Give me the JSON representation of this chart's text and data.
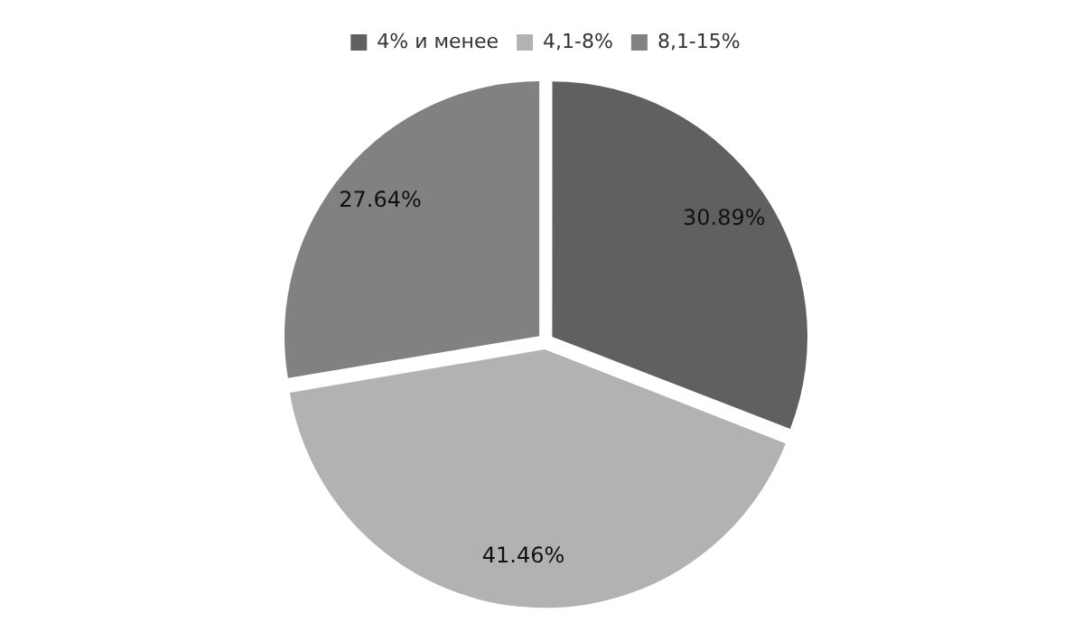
{
  "chart_data": {
    "type": "pie",
    "categories": [
      "4% и менее",
      "4,1-8%",
      "8,1-15%"
    ],
    "values": [
      30.89,
      41.46,
      27.64
    ],
    "colors": [
      "#606060",
      "#b2b2b2",
      "#818181"
    ],
    "value_labels": [
      "30.89%",
      "41.46%",
      "27.64%"
    ],
    "legend": "top"
  }
}
